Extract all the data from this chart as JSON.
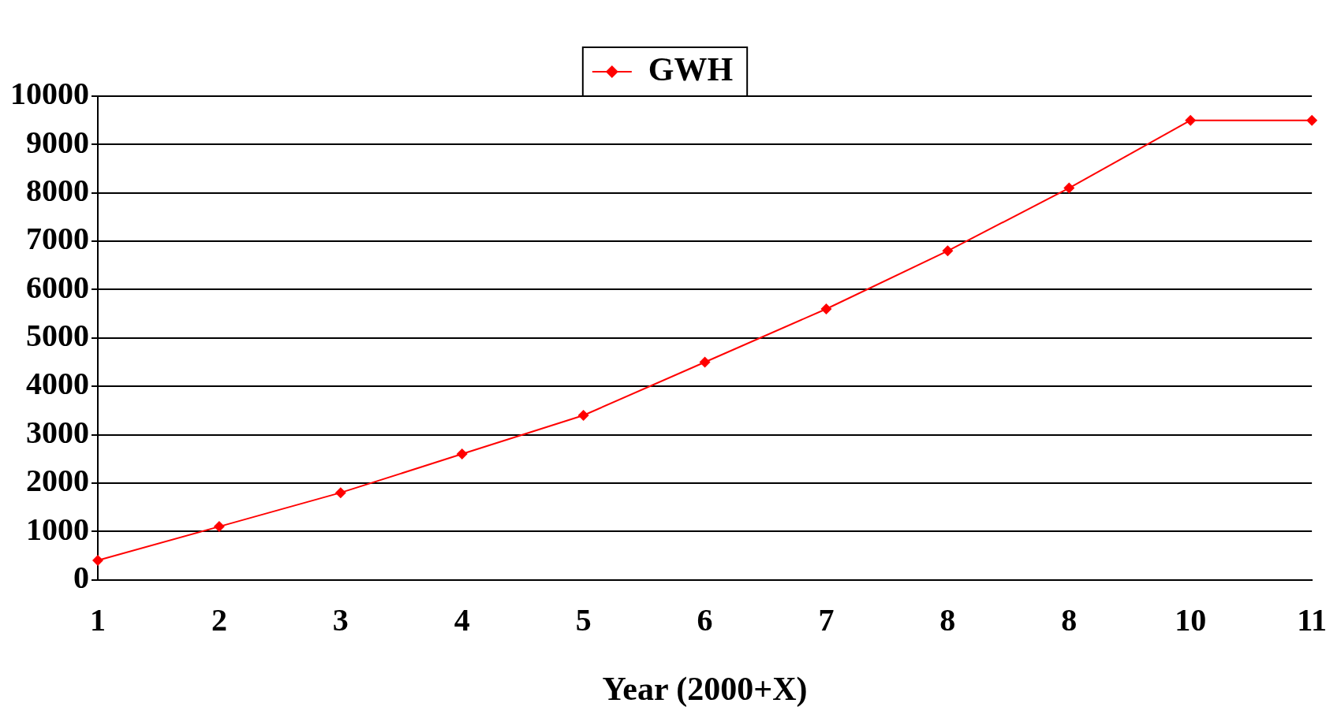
{
  "chart_data": {
    "type": "line",
    "xlabel": "Year (2000+X)",
    "categories": [
      "1",
      "2",
      "3",
      "4",
      "5",
      "6",
      "7",
      "8",
      "8",
      "10",
      "11"
    ],
    "series": [
      {
        "name": "GWH",
        "color": "#ff0000",
        "values": [
          400,
          1100,
          1800,
          2600,
          3400,
          4500,
          5600,
          6800,
          8100,
          9500,
          9500
        ]
      }
    ],
    "ylim": [
      0,
      10000
    ],
    "yticks": [
      0,
      1000,
      2000,
      3000,
      4000,
      5000,
      6000,
      7000,
      8000,
      9000,
      10000
    ],
    "grid": "y",
    "legend": "top",
    "marker": "diamond",
    "line_style": "solid"
  }
}
